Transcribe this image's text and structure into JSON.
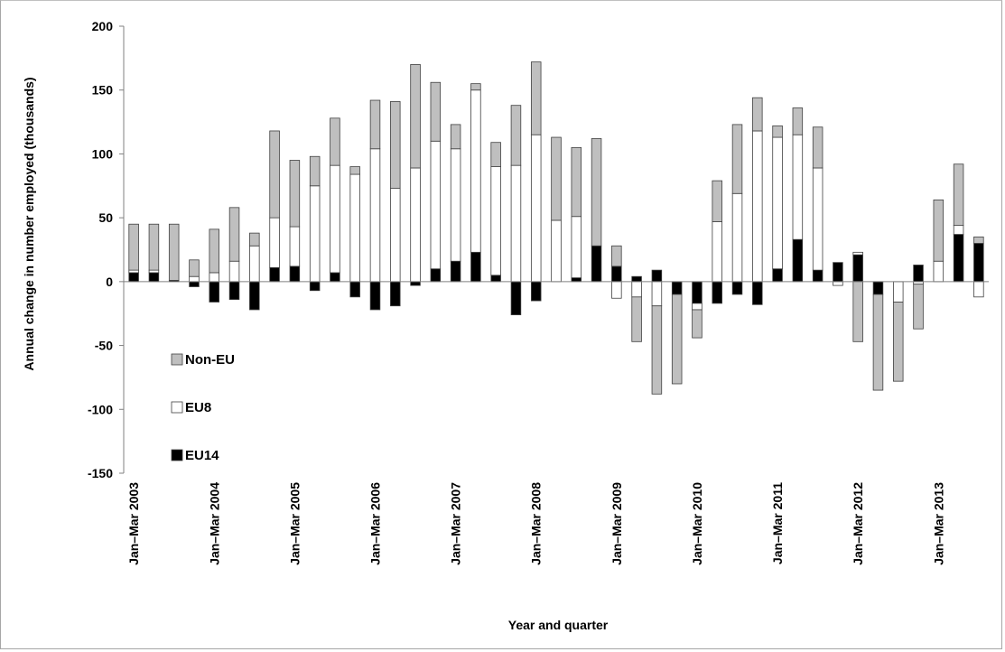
{
  "chart_data": {
    "type": "bar",
    "stacked": true,
    "title": "",
    "xlabel": "Year and quarter",
    "ylabel": "Annual change in number employed (thousands)",
    "ylim": [
      -150,
      200
    ],
    "yticks": [
      -150,
      -100,
      -50,
      0,
      50,
      100,
      150,
      200
    ],
    "grid": false,
    "legend_position": "left-middle",
    "x_tick_labels": [
      "Jan–Mar 2003",
      "Jan–Mar 2004",
      "Jan–Mar 2005",
      "Jan–Mar 2006",
      "Jan–Mar 2007",
      "Jan–Mar 2008",
      "Jan–Mar 2009",
      "Jan–Mar 2010",
      "Jan–Mar 2011",
      "Jan–Mar 2012",
      "Jan–Mar 2013"
    ],
    "categories": [
      "2003 Q1",
      "2003 Q2",
      "2003 Q3",
      "2003 Q4",
      "2004 Q1",
      "2004 Q2",
      "2004 Q3",
      "2004 Q4",
      "2005 Q1",
      "2005 Q2",
      "2005 Q3",
      "2005 Q4",
      "2006 Q1",
      "2006 Q2",
      "2006 Q3",
      "2006 Q4",
      "2007 Q1",
      "2007 Q2",
      "2007 Q3",
      "2007 Q4",
      "2008 Q1",
      "2008 Q2",
      "2008 Q3",
      "2008 Q4",
      "2009 Q1",
      "2009 Q2",
      "2009 Q3",
      "2009 Q4",
      "2010 Q1",
      "2010 Q2",
      "2010 Q3",
      "2010 Q4",
      "2011 Q1",
      "2011 Q2",
      "2011 Q3",
      "2011 Q4",
      "2012 Q1",
      "2012 Q2",
      "2012 Q3",
      "2012 Q4",
      "2013 Q1",
      "2013 Q2",
      "2013 Q3"
    ],
    "series": [
      {
        "name": "EU14",
        "color": "#000000",
        "values": [
          7,
          7,
          1,
          -4,
          -16,
          -14,
          -22,
          11,
          12,
          -7,
          7,
          -12,
          -22,
          -19,
          -3,
          10,
          16,
          23,
          5,
          -26,
          -15,
          0,
          3,
          28,
          12,
          4,
          9,
          -10,
          -17,
          -17,
          -10,
          -18,
          10,
          33,
          9,
          15,
          21,
          -10,
          0,
          13,
          0,
          37,
          30
        ]
      },
      {
        "name": "EU8",
        "color": "#ffffff",
        "values": [
          2,
          2,
          0,
          4,
          7,
          16,
          28,
          39,
          31,
          75,
          84,
          84,
          104,
          73,
          89,
          100,
          88,
          127,
          85,
          91,
          115,
          48,
          48,
          0,
          -13,
          -12,
          -19,
          0,
          -5,
          47,
          69,
          118,
          103,
          82,
          80,
          -3,
          2,
          0,
          -16,
          -2,
          16,
          7,
          -12
        ]
      },
      {
        "name": "Non-EU",
        "color": "#bfbfbf",
        "values": [
          36,
          36,
          44,
          13,
          34,
          42,
          10,
          68,
          52,
          23,
          37,
          6,
          38,
          68,
          81,
          46,
          19,
          5,
          19,
          47,
          57,
          65,
          54,
          84,
          16,
          -35,
          -69,
          -70,
          -22,
          32,
          54,
          26,
          9,
          21,
          32,
          0,
          -47,
          -75,
          -62,
          -35,
          48,
          48,
          5
        ]
      }
    ]
  }
}
